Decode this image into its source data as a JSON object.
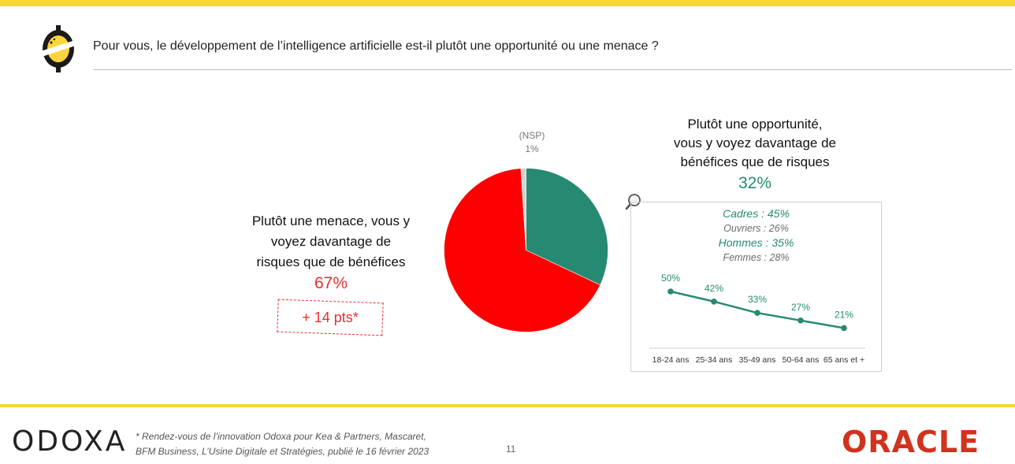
{
  "header": {
    "question": "Pour vous, le développement de l’intelligence artificielle est-il plutôt une opportunité ou une menace ?"
  },
  "menace": {
    "text_lines": [
      "Plutôt une menace, vous y",
      "voyez davantage de",
      "risques que de bénéfices"
    ],
    "pct": "67%",
    "evolution": "+ 14 pts*"
  },
  "opportunite": {
    "text_lines": [
      "Plutôt une opportunité,",
      "vous y voyez davantage de",
      "bénéfices que de risques"
    ],
    "pct": "32%"
  },
  "nsp": {
    "label": "(NSP)",
    "pct": "1%"
  },
  "details": {
    "cadres": "Cadres : 45%",
    "ouvriers": "Ouvriers : 26%",
    "hommes": "Hommes : 35%",
    "femmes": "Femmes : 28%"
  },
  "colors": {
    "menace": "#ff0000",
    "opportunite": "#268a72",
    "nsp": "#d4d4d4",
    "accent": "#fcd43c"
  },
  "chart_data": [
    {
      "type": "pie",
      "title": "",
      "slices": [
        {
          "label": "Plutôt une opportunité",
          "value": 32,
          "color": "#268a72"
        },
        {
          "label": "Plutôt une menace",
          "value": 67,
          "color": "#ff0000"
        },
        {
          "label": "(NSP)",
          "value": 1,
          "color": "#d4d4d4"
        }
      ]
    },
    {
      "type": "line",
      "title": "",
      "categories": [
        "18-24 ans",
        "25-34 ans",
        "35-49 ans",
        "50-64 ans",
        "65 ans et +"
      ],
      "values": [
        50,
        42,
        33,
        27,
        21
      ],
      "labels": [
        "50%",
        "42%",
        "33%",
        "27%",
        "21%"
      ],
      "color": "#268a72",
      "grid": false
    }
  ],
  "footer": {
    "logo": "ODOXA",
    "footnote_lines": [
      "* Rendez-vous de l’innovation Odoxa pour Kea & Partners, Mascaret,",
      "BFM Business, L’Usine Digitale et Stratégies, publié le 16 février 2023"
    ],
    "page_number": "11",
    "brand": "ORACLE"
  }
}
